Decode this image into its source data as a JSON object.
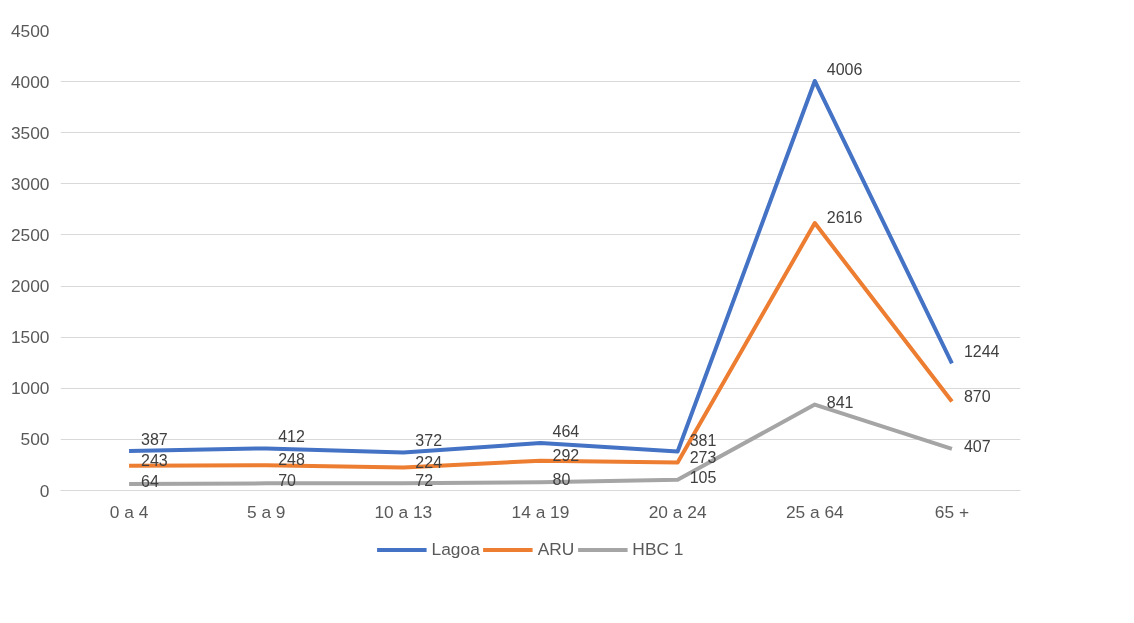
{
  "chart_data": {
    "type": "line",
    "categories": [
      "0 a 4",
      "5 a 9",
      "10 a 13",
      "14 a 19",
      "20 a 24",
      "25 a 64",
      "65 +"
    ],
    "series": [
      {
        "name": "Lagoa",
        "color": "#4472c4",
        "values": [
          387,
          412,
          372,
          464,
          381,
          4006,
          1244
        ]
      },
      {
        "name": "ARU",
        "color": "#ed7d31",
        "values": [
          243,
          248,
          224,
          292,
          273,
          2616,
          870
        ]
      },
      {
        "name": "HBC 1",
        "color": "#a5a5a5",
        "values": [
          64,
          70,
          72,
          80,
          105,
          841,
          407
        ]
      }
    ],
    "ylim": [
      0,
      4500
    ],
    "yticks": [
      0,
      500,
      1000,
      1500,
      2000,
      2500,
      3000,
      3500,
      4000,
      4500
    ],
    "grid": "y",
    "legend": "bottom",
    "data_labels": true,
    "marker": "none"
  }
}
